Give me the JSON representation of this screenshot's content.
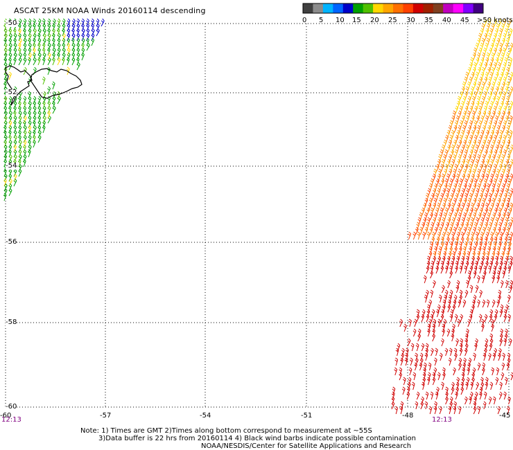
{
  "title": "ASCAT 25KM NOAA Winds 20160114 descending",
  "colorbar": {
    "ticks": [
      "0",
      "5",
      "10",
      "15",
      "20",
      "25",
      "30",
      "35",
      "40",
      "45",
      ">50 knots"
    ],
    "colors": [
      "#404040",
      "#8c8c8c",
      "#00b4ff",
      "#0064ff",
      "#0000c8",
      "#00a000",
      "#50c000",
      "#ffd700",
      "#ffa500",
      "#ff7000",
      "#ff4000",
      "#d00000",
      "#a02000",
      "#804020",
      "#c000c0",
      "#ff00ff",
      "#8000ff",
      "#400080"
    ]
  },
  "map": {
    "lat_labels": [
      "-50",
      "-52",
      "-54",
      "-56",
      "-58",
      "-60"
    ],
    "lon_labels": [
      "-60",
      "-57",
      "-54",
      "-51",
      "-48",
      "-45"
    ],
    "time_labels": [
      "12:13",
      "12:13"
    ],
    "coastline": "Falkland Islands"
  },
  "notes": [
    "Note: 1) Times are GMT 2)Times along bottom correspond to measurement at ~55S",
    "3)Data buffer is 22 hrs from 20160114 4) Black wind barbs indicate possible contamination",
    "NOAA/NESDIS/Center for Satellite Applications and Research"
  ]
}
